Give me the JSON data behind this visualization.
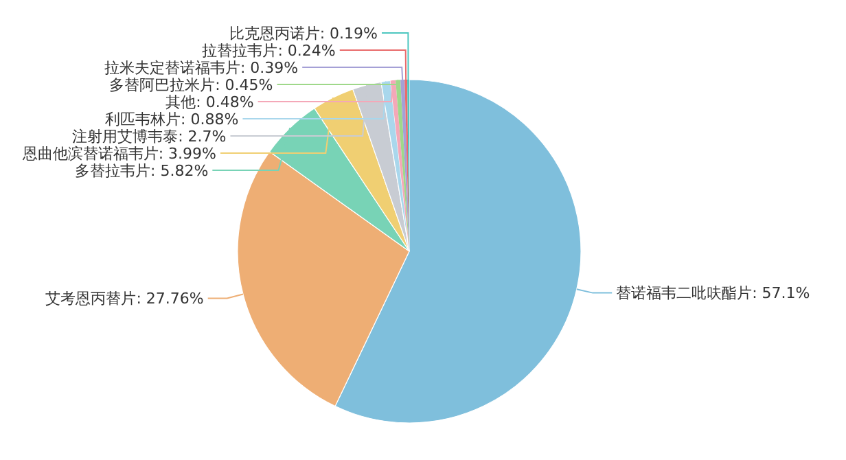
{
  "chart_data": {
    "type": "pie",
    "categories": [
      "替诺福韦二吡呋酯片",
      "艾考恩丙替片",
      "多替拉韦片",
      "恩曲他滨替诺福韦片",
      "注射用艾博韦泰",
      "利匹韦林片",
      "其他",
      "多替阿巴拉米片",
      "拉米夫定替诺福韦片",
      "拉替拉韦片",
      "比克恩丙诺片"
    ],
    "values": [
      57.1,
      27.76,
      5.82,
      3.99,
      2.7,
      0.88,
      0.48,
      0.45,
      0.39,
      0.24,
      0.19
    ],
    "value_labels": [
      "57.1%",
      "27.76%",
      "5.82%",
      "3.99%",
      "2.7%",
      "0.88%",
      "0.48%",
      "0.45%",
      "0.39%",
      "0.24%",
      "0.19%"
    ],
    "colors": [
      "#7fbfdc",
      "#eeae74",
      "#78d3b6",
      "#f0cf72",
      "#c8ccd3",
      "#a9d7ec",
      "#f4a8b8",
      "#9fd88a",
      "#a5a0d6",
      "#e96c6c",
      "#4dc7c0"
    ]
  }
}
